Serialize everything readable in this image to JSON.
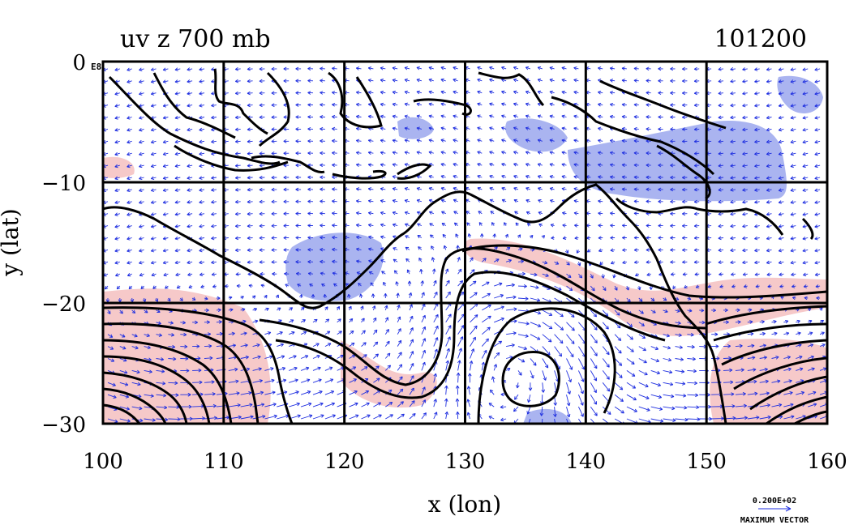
{
  "plot": {
    "title_left": "uv z 700 mb",
    "title_right": "101200",
    "corner_label": "E8"
  },
  "axes": {
    "xlabel": "x (lon)",
    "ylabel": "y (lat)",
    "x_ticks": [
      100,
      110,
      120,
      130,
      140,
      150,
      160
    ],
    "y_ticks": [
      0,
      -10,
      -20,
      -30
    ],
    "x_tick_labels": [
      "100",
      "110",
      "120",
      "130",
      "140",
      "150",
      "160"
    ],
    "y_tick_labels": [
      "0",
      "−10",
      "−20",
      "−30"
    ],
    "xlim": [
      100,
      160
    ],
    "ylim": [
      -30,
      0
    ],
    "grid": true
  },
  "vector_legend": {
    "value": "0.200E+02",
    "label": "MAXIMUM VECTOR"
  },
  "colors": {
    "vector": "#1f2fe0",
    "positive_shade": "#f6c9c9",
    "negative_shade": "#aab4f0",
    "contour": "#000000"
  }
}
